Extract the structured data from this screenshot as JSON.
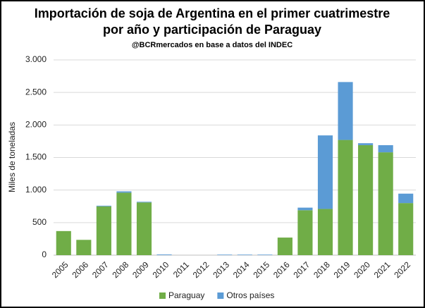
{
  "chart_data": {
    "type": "stacked_bar",
    "title": "Importación de soja de Argentina en el primer cuatrimestre",
    "subtitle": "por año y participación de Paraguay",
    "source": "@BCRmercados en base a datos del INDEC",
    "y_label": "Miles de toneladas",
    "categories": [
      "2005",
      "2006",
      "2007",
      "2008",
      "2009",
      "2010",
      "2011",
      "2012",
      "2013",
      "2014",
      "2015",
      "2016",
      "2017",
      "2018",
      "2019",
      "2020",
      "2021",
      "2022"
    ],
    "series": [
      {
        "name": "Paraguay",
        "color": "#70ad47",
        "values": [
          370,
          235,
          750,
          960,
          810,
          0,
          0,
          0,
          0,
          0,
          0,
          270,
          690,
          710,
          1770,
          1690,
          1580,
          800
        ]
      },
      {
        "name": "Otros países",
        "color": "#5b9bd5",
        "values": [
          0,
          0,
          10,
          20,
          10,
          10,
          0,
          0,
          8,
          8,
          8,
          0,
          40,
          1130,
          890,
          30,
          110,
          145
        ]
      }
    ],
    "ylim": [
      0,
      3000
    ],
    "yticks": [
      0,
      500,
      {
        "value": 1000,
        "label": "1.000"
      },
      {
        "value": 1500,
        "label": "1.500"
      },
      {
        "value": 2000,
        "label": "2.000"
      },
      {
        "value": 2500,
        "label": "2.500"
      },
      {
        "value": 3000,
        "label": "3.000"
      }
    ],
    "grid": true,
    "legend": "bottom"
  }
}
